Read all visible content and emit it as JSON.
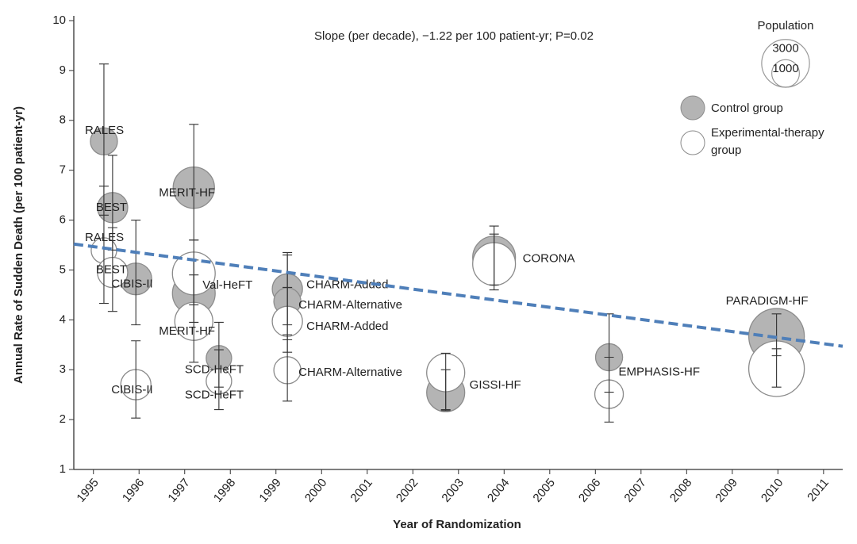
{
  "chart_data": {
    "type": "bubble",
    "annotation": "Slope (per decade), −1.22 per 100 patient-yr; P=0.02",
    "x_label": "Year of Randomization",
    "y_label": "Annual Rate of Sudden Death (per 100 patient-yr)",
    "xlim": [
      1994.57,
      2011.42
    ],
    "xticks": [
      1995,
      1996,
      1997,
      1998,
      1999,
      2000,
      2001,
      2002,
      2003,
      2004,
      2005,
      2006,
      2007,
      2008,
      2009,
      2010,
      2011
    ],
    "ylim": [
      1,
      10
    ],
    "yticks": [
      1,
      2,
      3,
      4,
      5,
      6,
      7,
      8,
      9,
      10
    ],
    "size_legend_title": "Population",
    "size_reference": [
      3000,
      1000
    ],
    "series": [
      {
        "name": "Control group",
        "color": "#b4b4b4",
        "x": [
          1995.23,
          1995.42,
          1995.93,
          1997.2,
          1997.2,
          1997.75,
          1999.25,
          1999.25,
          2002.72,
          2003.78,
          2006.3,
          2009.97
        ],
        "values": [
          7.58,
          6.25,
          4.82,
          6.65,
          4.53,
          3.23,
          4.62,
          4.37,
          2.54,
          5.25,
          3.25,
          3.67
        ],
        "lower": [
          6.1,
          5.4,
          3.9,
          5.6,
          3.95,
          2.65,
          3.9,
          3.6,
          2.18,
          4.7,
          2.55,
          3.28
        ],
        "upper": [
          9.13,
          7.3,
          6.0,
          7.92,
          5.2,
          3.95,
          5.35,
          5.3,
          3.0,
          5.88,
          4.12,
          4.12
        ],
        "sizes": [
          960,
          1200,
          1320,
          2240,
          2400,
          850,
          1200,
          960,
          1900,
          2400,
          960,
          4050
        ],
        "labels": [
          "RALES",
          "BEST",
          "CIBIS-II",
          "MERIT-HF",
          null,
          "SCD-HeFT",
          "CHARM-Added",
          "CHARM-Alternative",
          "GISSI-HF",
          "CORONA",
          "EMPHASIS-HF",
          "PARADIGM-HF"
        ]
      },
      {
        "name": "Experimental-therapy group",
        "color": "#ffffff",
        "x": [
          1995.23,
          1995.42,
          1995.93,
          1997.2,
          1997.2,
          1997.75,
          1999.25,
          1999.25,
          2002.72,
          2003.78,
          2006.3,
          2009.97
        ],
        "values": [
          5.39,
          4.95,
          2.7,
          3.97,
          4.93,
          2.77,
          3.97,
          2.99,
          2.94,
          5.12,
          2.51,
          3.02
        ],
        "lower": [
          4.33,
          4.17,
          2.03,
          3.15,
          4.3,
          2.2,
          3.35,
          2.37,
          2.2,
          4.6,
          1.95,
          2.65
        ],
        "upper": [
          6.68,
          5.85,
          3.58,
          4.9,
          5.6,
          3.4,
          4.65,
          3.7,
          3.33,
          5.72,
          3.25,
          3.42
        ],
        "sizes": [
          850,
          1200,
          1200,
          1900,
          2400,
          850,
          1200,
          960,
          1900,
          2400,
          1070,
          4050
        ],
        "labels": [
          "RALES",
          "BEST",
          "CIBIS-II",
          "MERIT-HF",
          "Val-HeFT",
          "SCD-HeFT",
          "CHARM-Added",
          "CHARM-Alternative",
          null,
          null,
          null,
          null
        ]
      }
    ],
    "trend": {
      "color": "#4f7fb9",
      "x": [
        1994.57,
        2011.42
      ],
      "values": [
        5.52,
        3.47
      ]
    }
  }
}
